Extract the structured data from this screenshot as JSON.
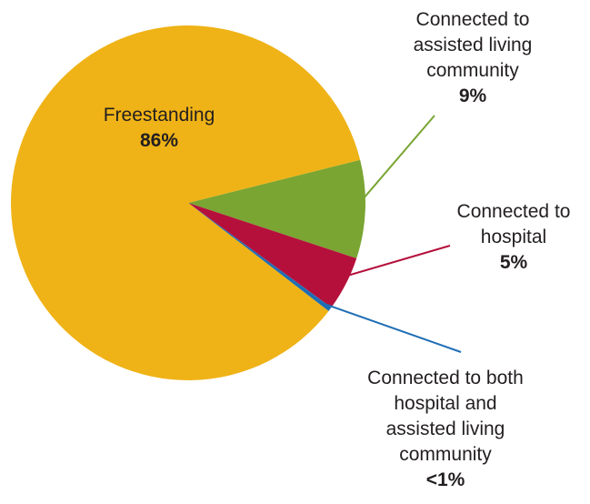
{
  "chart_data": {
    "type": "pie",
    "slices": [
      {
        "label": "Freestanding",
        "value_label": "86%",
        "value": 86,
        "color": "#efb317"
      },
      {
        "label": "Connected to\nassisted living\ncommunity",
        "value_label": "9%",
        "value": 9,
        "color": "#7aa532"
      },
      {
        "label": "Connected to\nhospital",
        "value_label": "5%",
        "value": 5,
        "color": "#b5103c"
      },
      {
        "label": "Connected to both\nhospital and\nassisted living\ncommunity",
        "value_label": "<1%",
        "value": 0.4,
        "color": "#1f6eb5"
      }
    ],
    "leader_colors": [
      "#7aa532",
      "#b5103c",
      "#1f6eb5"
    ]
  }
}
